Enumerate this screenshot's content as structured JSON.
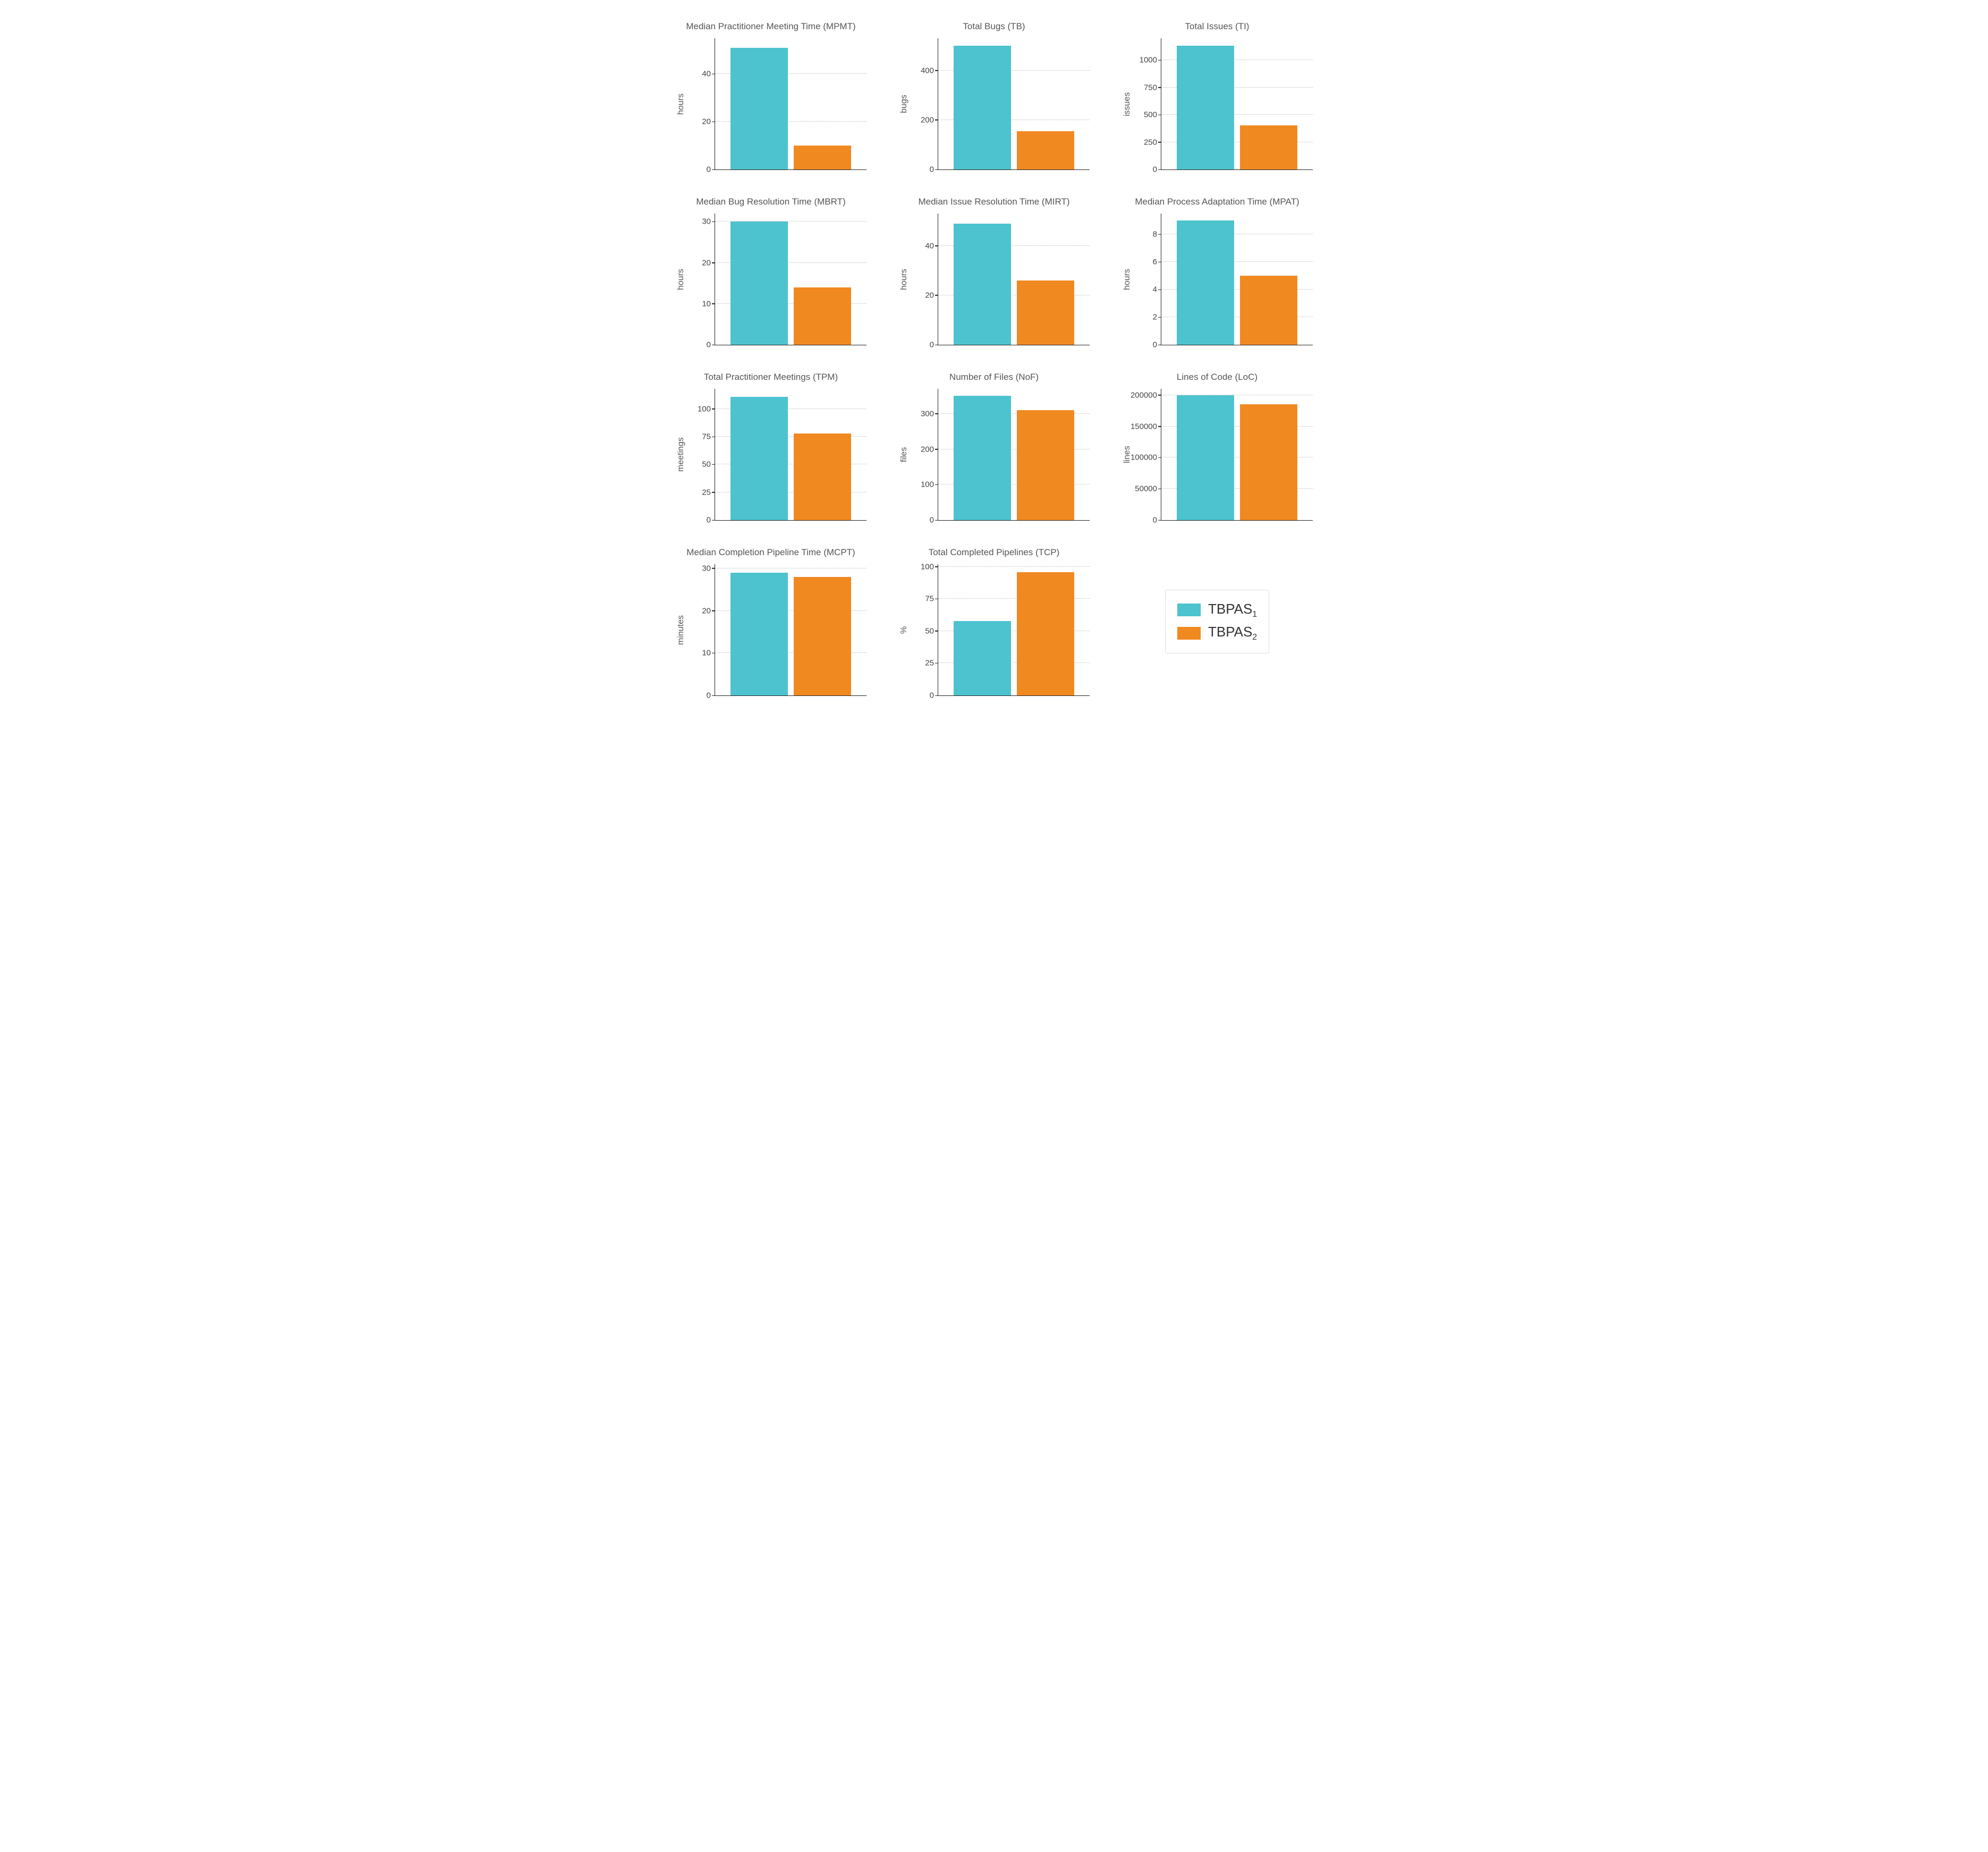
{
  "colors": {
    "series1": "#4cc3cf",
    "series2": "#f18921",
    "axis": "#222222",
    "grid": "#bbbbbb",
    "background": "#ffffff"
  },
  "bar_layout": {
    "bar_width_pct": 38,
    "bar1_left_pct": 10,
    "bar2_left_pct": 52
  },
  "legend": {
    "items": [
      {
        "label_html": "TBPAS<sub>1</sub>",
        "swatch_color_key": "series1"
      },
      {
        "label_html": "TBPAS<sub>2</sub>",
        "swatch_color_key": "series2"
      }
    ]
  },
  "panels": [
    {
      "title": "Median Practitioner Meeting Time (MPMT)",
      "ylabel": "hours",
      "ymax": 55,
      "yticks": [
        0,
        20,
        40
      ],
      "values": [
        51,
        10
      ]
    },
    {
      "title": "Total Bugs (TB)",
      "ylabel": "bugs",
      "ymax": 530,
      "yticks": [
        0,
        200,
        400
      ],
      "values": [
        500,
        155
      ]
    },
    {
      "title": "Total Issues (TI)",
      "ylabel": "issues",
      "ymax": 1200,
      "yticks": [
        0,
        250,
        500,
        750,
        1000
      ],
      "values": [
        1130,
        405
      ]
    },
    {
      "title": "Median Bug Resolution Time (MBRT)",
      "ylabel": "hours",
      "ymax": 32,
      "yticks": [
        0,
        10,
        20,
        30
      ],
      "values": [
        30,
        14
      ]
    },
    {
      "title": "Median Issue Resolution Time (MIRT)",
      "ylabel": "hours",
      "ymax": 53,
      "yticks": [
        0,
        20,
        40
      ],
      "values": [
        49,
        26
      ]
    },
    {
      "title": "Median Process Adaptation Time (MPAT)",
      "ylabel": "hours",
      "ymax": 9.5,
      "yticks": [
        0,
        2,
        4,
        6,
        8
      ],
      "values": [
        9,
        5
      ]
    },
    {
      "title": "Total Practitioner Meetings (TPM)",
      "ylabel": "meetings",
      "ymax": 118,
      "yticks": [
        0,
        25,
        50,
        75,
        100
      ],
      "values": [
        111,
        78
      ]
    },
    {
      "title": "Number of Files (NoF)",
      "ylabel": "files",
      "ymax": 370,
      "yticks": [
        0,
        100,
        200,
        300
      ],
      "values": [
        350,
        310
      ]
    },
    {
      "title": "Lines of Code (LoC)",
      "ylabel": "lines",
      "ymax": 210000,
      "yticks": [
        0,
        50000,
        100000,
        150000,
        200000
      ],
      "values": [
        200000,
        185000
      ]
    },
    {
      "title": "Median Completion Pipeline Time (MCPT)",
      "ylabel": "minutes",
      "ymax": 31,
      "yticks": [
        0,
        10,
        20,
        30
      ],
      "values": [
        29,
        28
      ]
    },
    {
      "title": "Total Completed Pipelines (TCP)",
      "ylabel": "%",
      "ymax": 102,
      "yticks": [
        0,
        25,
        50,
        75,
        100
      ],
      "values": [
        58,
        96
      ]
    }
  ]
}
